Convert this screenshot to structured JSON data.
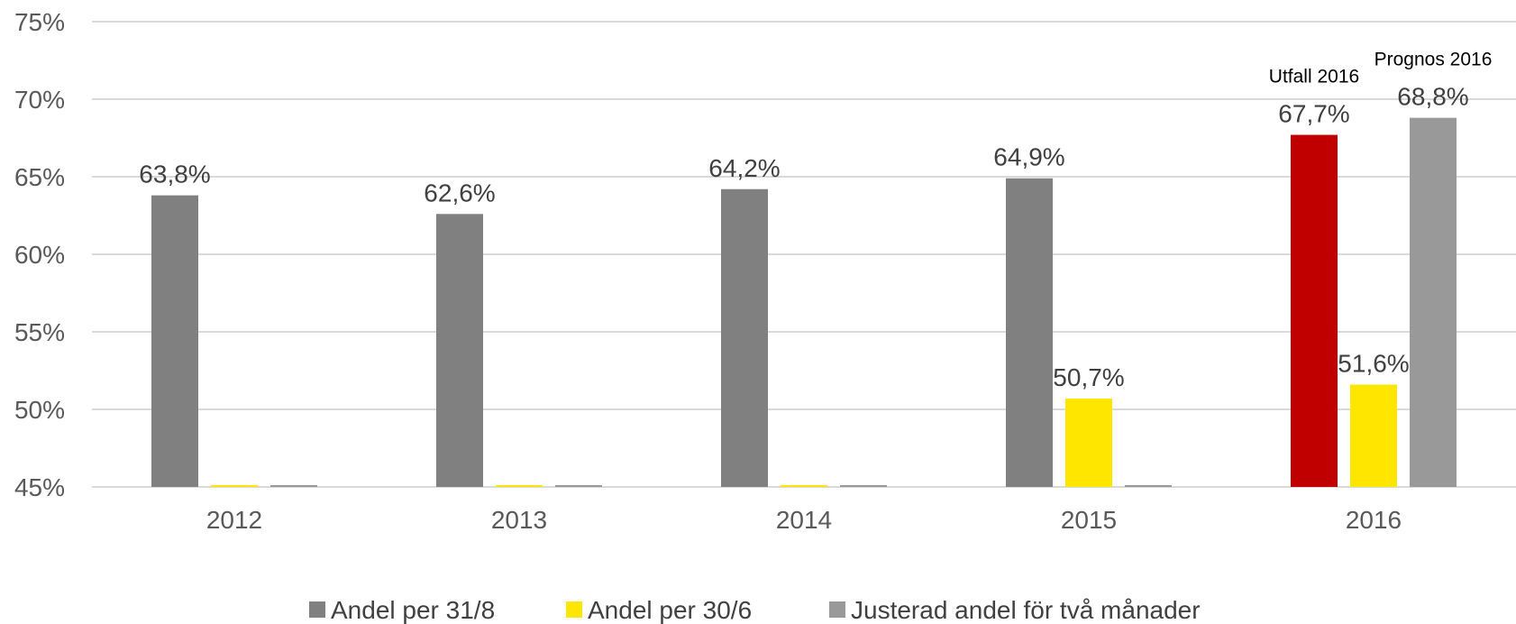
{
  "chart_data": {
    "type": "bar",
    "categories": [
      "2012",
      "2013",
      "2014",
      "2015",
      "2016"
    ],
    "ylim": [
      45,
      75
    ],
    "yticks": [
      "45%",
      "50%",
      "55%",
      "60%",
      "65%",
      "70%",
      "75%"
    ],
    "ytick_values": [
      45,
      50,
      55,
      60,
      65,
      70,
      75
    ],
    "grid": true,
    "legend_position": "bottom",
    "series": [
      {
        "name": "Andel per 31/8",
        "color": "#808080",
        "values": [
          63.8,
          62.6,
          64.2,
          64.9,
          67.7
        ],
        "labels": [
          "63,8%",
          "62,6%",
          "64,2%",
          "64,9%",
          "67,7%"
        ],
        "point_colors": [
          "#808080",
          "#808080",
          "#808080",
          "#808080",
          "#C00000"
        ]
      },
      {
        "name": "Andel per 30/6",
        "color": "#FFE600",
        "values": [
          45,
          45,
          45,
          50.7,
          51.6
        ],
        "labels": [
          "",
          "",
          "",
          "50,7%",
          "51,6%"
        ]
      },
      {
        "name": "Justerad andel för två månader",
        "color": "#999999",
        "values": [
          45,
          45,
          45,
          45,
          68.8
        ],
        "labels": [
          "",
          "",
          "",
          "",
          "68,8%"
        ]
      }
    ],
    "annotations": [
      {
        "text": "Utfall 2016",
        "category": "2016",
        "series": 0
      },
      {
        "text": "Prognos 2016",
        "category": "2016",
        "series": 2
      }
    ]
  }
}
